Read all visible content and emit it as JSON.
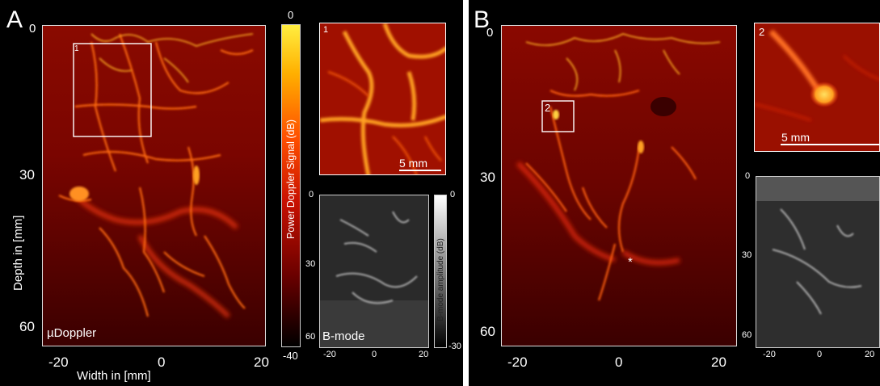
{
  "panels": {
    "a_letter": "A",
    "b_letter": "B"
  },
  "panel_a": {
    "depth_ticks": [
      "0",
      "30",
      "60"
    ],
    "width_ticks": [
      "-20",
      "0",
      "20"
    ],
    "ylabel": "Depth in [mm]",
    "xlabel": "Width in [mm]",
    "main_label": "µDoppler",
    "roi_label": "1",
    "inset_label": "1",
    "scale_bar": "5 mm",
    "colorbar_label": "Power Doppler Signal (dB)",
    "colorbar_ticks": [
      "0",
      "-40"
    ],
    "bmode_label": "B-mode",
    "bmode_depth_ticks": [
      "0",
      "30",
      "60"
    ],
    "bmode_width_ticks": [
      "-20",
      "0",
      "20"
    ],
    "bmode_colorbar_label": "B-mode amplitude (dB)",
    "bmode_colorbar_ticks": [
      "0",
      "-30"
    ]
  },
  "panel_b": {
    "depth_ticks": [
      "0",
      "30",
      "60"
    ],
    "width_ticks": [
      "-20",
      "0",
      "20"
    ],
    "roi_label": "2",
    "inset_label": "2",
    "scale_bar": "5 mm",
    "asterisk": "*",
    "bmode_depth_ticks": [
      "0",
      "30",
      "60"
    ],
    "bmode_width_ticks": [
      "-20",
      "0",
      "20"
    ]
  },
  "colors": {
    "doppler_dark": "#3a0000",
    "doppler_mid": "#c01000",
    "doppler_bright": "#ff8c00",
    "doppler_peak": "#ffe040",
    "background": "#000000"
  }
}
